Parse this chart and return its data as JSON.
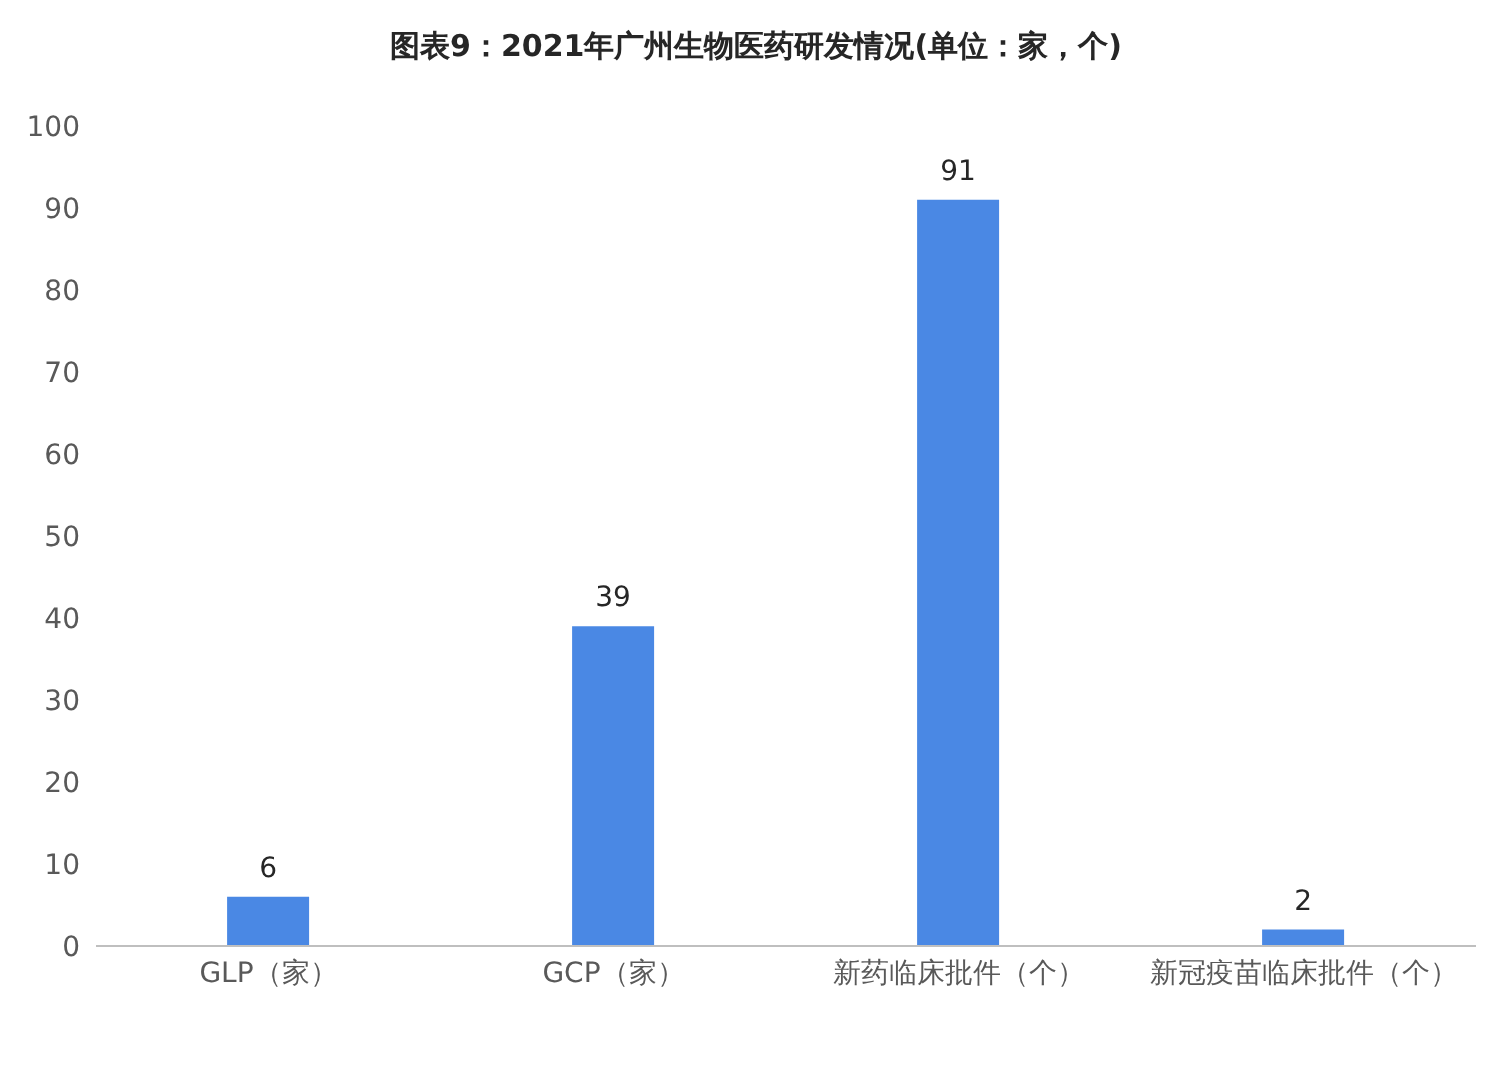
{
  "chart_data": {
    "type": "bar",
    "title": "图表9：2021年广州生物医药研发情况(单位：家，个)",
    "categories": [
      "GLP（家）",
      "GCP（家）",
      "新药临床批件（个）",
      "新冠疫苗临床批件（个）"
    ],
    "values": [
      6,
      39,
      91,
      2
    ],
    "color": "#4a88e4",
    "ylim": [
      0,
      100
    ],
    "yticks": [
      0,
      10,
      20,
      30,
      40,
      50,
      60,
      70,
      80,
      90,
      100
    ],
    "data_labels": true
  }
}
